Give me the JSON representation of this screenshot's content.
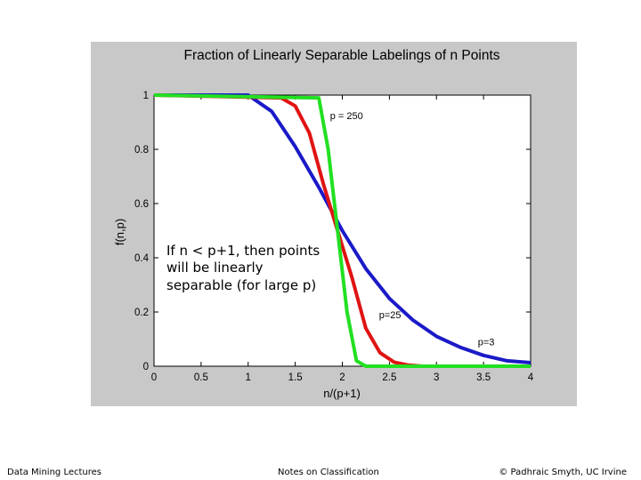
{
  "chart_data": {
    "type": "line",
    "title": "Fraction of Linearly Separable Labelings of n Points",
    "xlabel": "n/(p+1)",
    "ylabel": "f(n,p)",
    "xlim": [
      0,
      4
    ],
    "ylim": [
      0,
      1
    ],
    "x_ticks": [
      "0",
      "0.5",
      "1",
      "1.5",
      "2",
      "2.5",
      "3",
      "3.5",
      "4"
    ],
    "y_ticks": [
      "0",
      "0.2",
      "0.4",
      "0.6",
      "0.8",
      "1"
    ],
    "grid": false,
    "series": [
      {
        "name": "p=3",
        "color": "#1a1ac8",
        "x": [
          0,
          1.0,
          1.25,
          1.5,
          1.75,
          2.0,
          2.25,
          2.5,
          2.75,
          3.0,
          3.25,
          3.5,
          3.75,
          4.0
        ],
        "y": [
          1.0,
          1.0,
          0.94,
          0.81,
          0.66,
          0.5,
          0.36,
          0.25,
          0.17,
          0.11,
          0.07,
          0.04,
          0.02,
          0.013
        ]
      },
      {
        "name": "p=25",
        "color": "#e01414",
        "x": [
          0,
          1.35,
          1.5,
          1.65,
          1.8,
          1.95,
          2.1,
          2.25,
          2.4,
          2.55,
          2.7,
          2.85,
          4.0
        ],
        "y": [
          1.0,
          0.99,
          0.96,
          0.86,
          0.67,
          0.5,
          0.33,
          0.14,
          0.05,
          0.015,
          0.004,
          0.0,
          0.0
        ]
      },
      {
        "name": "p = 250",
        "color": "#22e022",
        "x": [
          0,
          1.75,
          1.85,
          1.95,
          2.05,
          2.15,
          2.25,
          2.4,
          4.0
        ],
        "y": [
          1.0,
          0.99,
          0.8,
          0.5,
          0.2,
          0.02,
          0.0,
          0.0,
          0.0
        ]
      }
    ],
    "annotations": [
      {
        "text": "p = 250",
        "x": 1.87,
        "y": 0.925
      },
      {
        "text": "p=25",
        "x": 2.39,
        "y": 0.19
      },
      {
        "text": "p=3",
        "x": 3.44,
        "y": 0.09
      }
    ],
    "callout_lines": [
      "If n < p+1, then points",
      "will be linearly",
      "separable (for large p)"
    ]
  },
  "footer": {
    "left": "Data Mining Lectures",
    "center": "Notes on Classification",
    "right": "© Padhraic Smyth, UC Irvine"
  }
}
